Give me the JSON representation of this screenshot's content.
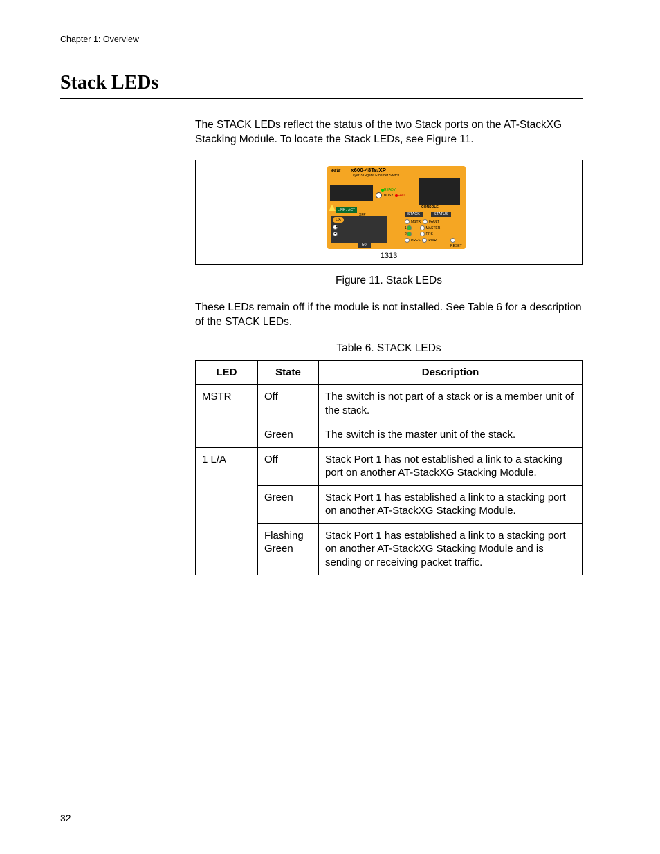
{
  "page": {
    "running_head": "Chapter 1: Overview",
    "section_title": "Stack LEDs",
    "page_number": "32"
  },
  "paragraphs": {
    "intro": "The STACK LEDs reflect the status of the two Stack ports on the AT-StackXG Stacking Module. To locate the Stack LEDs, see Figure 11.",
    "after_fig": "These LEDs remain off if the module is not installed. See Table 6 for a description of the STACK LEDs."
  },
  "figure": {
    "caption": "Figure 11. Stack LEDs",
    "ref_number": "1313",
    "device": {
      "brand_fragment": "esis",
      "model": "x600-48Ts/XP",
      "subtitle": "Layer 3 Gigabit Ethernet Switch",
      "sd_label": "SD",
      "ready": "READY",
      "busy": "BUSY",
      "fault": "FAULT",
      "linkact": "LINK / ACT",
      "la": "L/A",
      "xfp": "XFP",
      "port50": "50",
      "console": "CONSOLE",
      "stack_hdr": "STACK",
      "status_hdr": "STATUS",
      "row1_left": "MSTR",
      "row1_right": "FAULT",
      "row2_left_num": "1",
      "row2_right": "MASTER",
      "row3_left_num": "2",
      "row3_right": "RPS",
      "row4_left": "PRES",
      "row4_mid": "PWR",
      "row4_right": "RESET"
    }
  },
  "table": {
    "caption": "Table 6. STACK LEDs",
    "headers": {
      "led": "LED",
      "state": "State",
      "desc": "Description"
    },
    "groups": [
      {
        "led": "MSTR",
        "rows": [
          {
            "state": "Off",
            "desc": "The switch is not part of a stack or is a member unit of the stack."
          },
          {
            "state": "Green",
            "desc": "The switch is the master unit of the stack."
          }
        ]
      },
      {
        "led": "1 L/A",
        "rows": [
          {
            "state": "Off",
            "desc": "Stack Port 1 has not established a link to a stacking port on another AT-StackXG Stacking Module."
          },
          {
            "state": "Green",
            "desc": "Stack Port 1 has established a link to a stacking port on another AT-StackXG Stacking Module."
          },
          {
            "state": "Flashing Green",
            "desc": "Stack Port 1 has established a link to a stacking port on another AT-StackXG Stacking Module and is sending or receiving packet traffic."
          }
        ]
      }
    ]
  },
  "colors": {
    "device_orange": "#f5a623",
    "led_green": "#2dbb2d",
    "led_red": "#e00000",
    "dark_panel": "#333333"
  }
}
